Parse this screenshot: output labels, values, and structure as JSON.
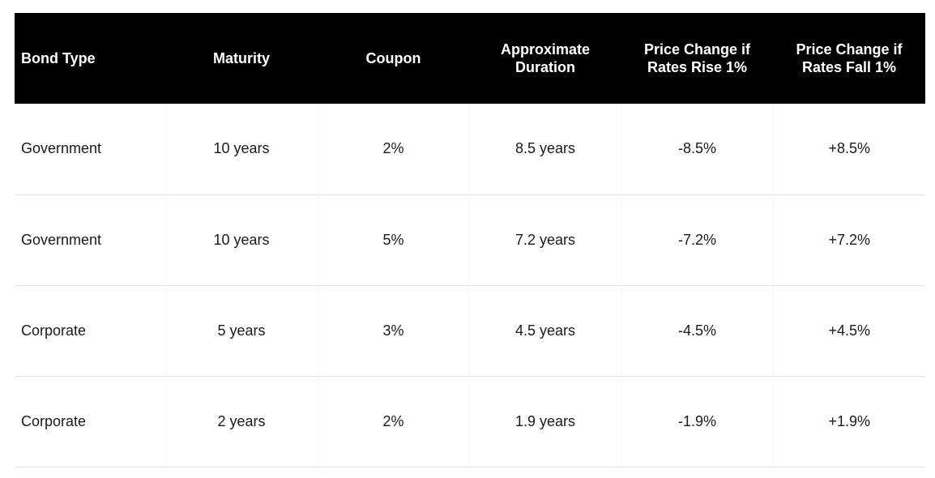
{
  "table": {
    "headers": [
      "Bond Type",
      "Maturity",
      "Coupon",
      "Approximate Duration",
      "Price Change if Rates Rise 1%",
      "Price Change if Rates Fall 1%"
    ],
    "rows": [
      [
        "Government",
        "10 years",
        "2%",
        "8.5 years",
        "-8.5%",
        "+8.5%"
      ],
      [
        "Government",
        "10 years",
        "5%",
        "7.2 years",
        "-7.2%",
        "+7.2%"
      ],
      [
        "Corporate",
        "5 years",
        "3%",
        "4.5 years",
        "-4.5%",
        "+4.5%"
      ],
      [
        "Corporate",
        "2 years",
        "2%",
        "1.9 years",
        "-1.9%",
        "+1.9%"
      ]
    ]
  },
  "colors": {
    "header_bg": "#000000",
    "header_text": "#ffffff",
    "row_divider": "#e3e3e3"
  }
}
